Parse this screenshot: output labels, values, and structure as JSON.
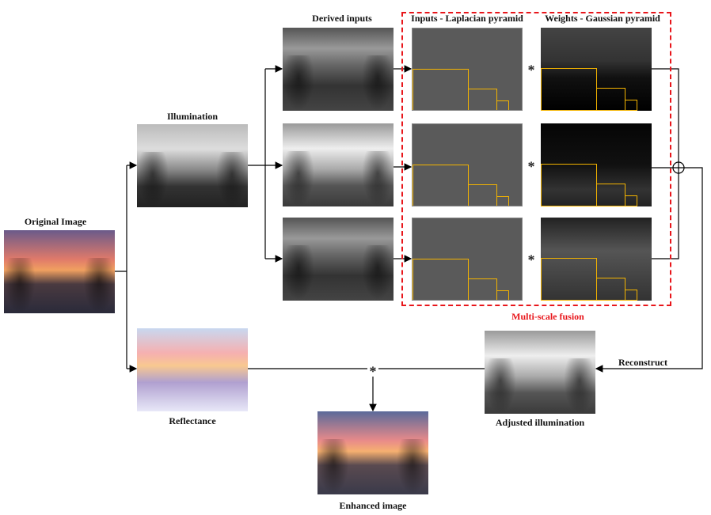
{
  "labels": {
    "original": "Original Image",
    "illumination": "Illumination",
    "reflectance": "Reflectance",
    "derived_inputs": "Derived inputs",
    "laplacian": "Inputs - Laplacian pyramid",
    "gaussian": "Weights - Gaussian pyramid",
    "fusion": "Multi-scale fusion",
    "adjusted": "Adjusted illumination",
    "reconstruct": "Reconstruct",
    "enhanced": "Enhanced image"
  },
  "operators": {
    "multiply": "*",
    "add": "⊕"
  },
  "colors": {
    "fusion_box": "#e8161b",
    "pyramid_outline": "#f4b400",
    "lines": "#000000"
  }
}
